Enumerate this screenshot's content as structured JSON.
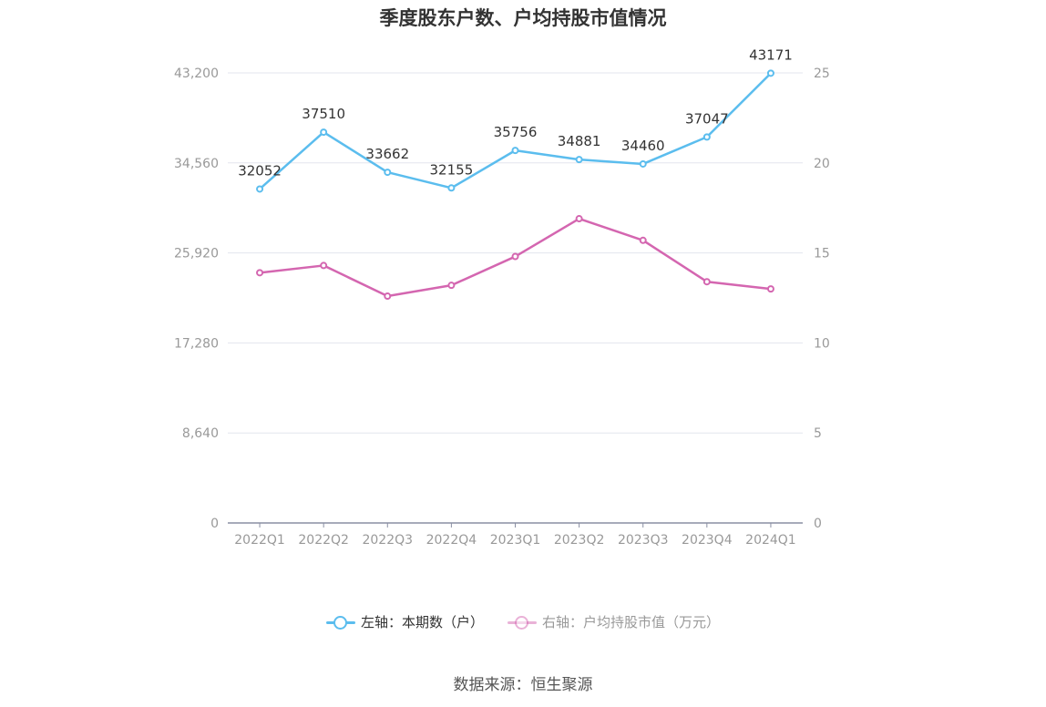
{
  "title": "季度股东户数、户均持股市值情况",
  "source": "数据来源：恒生聚源",
  "colors": {
    "left_series": "#5bbdee",
    "right_series": "#d466b0",
    "grid": "#e3e6ee",
    "axis": "#8a8fa3"
  },
  "chart_data": {
    "type": "line",
    "categories": [
      "2022Q1",
      "2022Q2",
      "2022Q3",
      "2022Q4",
      "2023Q1",
      "2023Q2",
      "2023Q3",
      "2023Q4",
      "2024Q1"
    ],
    "y_left": {
      "ticks": [
        "0",
        "8,640",
        "17,280",
        "25,920",
        "34,560",
        "43,200"
      ],
      "ylim": [
        0,
        43200
      ]
    },
    "y_right": {
      "ticks": [
        "0",
        "5",
        "10",
        "15",
        "20",
        "25"
      ],
      "ylim": [
        0,
        25
      ]
    },
    "series": [
      {
        "name": "左轴：本期数（户）",
        "axis": "left",
        "values": [
          32052,
          37510,
          33662,
          32155,
          35756,
          34881,
          34460,
          37047,
          43171
        ],
        "labels": [
          "32052",
          "37510",
          "33662",
          "32155",
          "35756",
          "34881",
          "34460",
          "37047",
          "43171"
        ]
      },
      {
        "name": "右轴：户均持股市值（万元）",
        "axis": "right",
        "values": [
          13.9,
          14.3,
          12.6,
          13.2,
          14.8,
          16.9,
          15.7,
          13.4,
          13.0
        ]
      }
    ],
    "grid": true,
    "legend": "bottom-center"
  }
}
